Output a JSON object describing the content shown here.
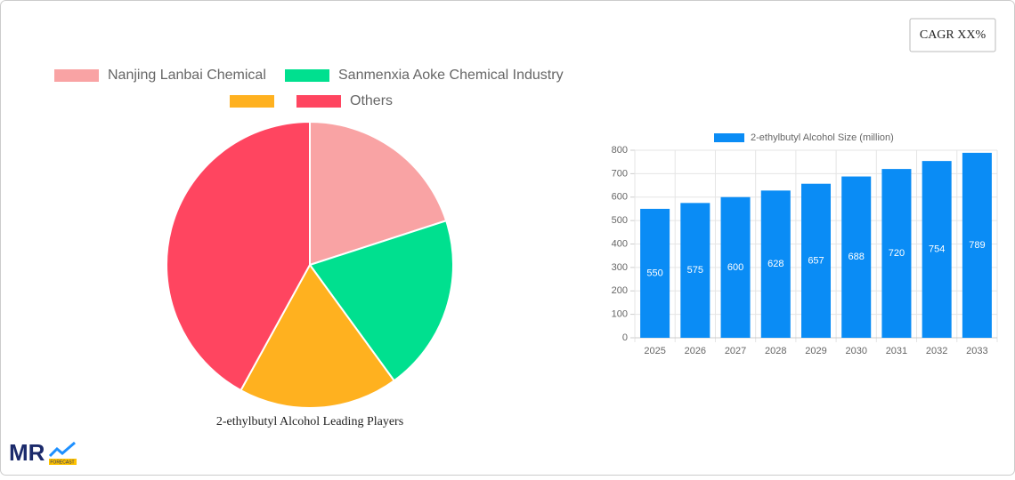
{
  "cagr_label": "CAGR XX%",
  "logo": {
    "text": "MR",
    "subtext": "FORECAST"
  },
  "chart_data": [
    {
      "type": "pie",
      "title": "2-ethylbutyl Alcohol Leading Players",
      "categories": [
        "Nanjing Lanbai Chemical",
        "Sanmenxia Aoke Chemical Industry",
        null,
        "Others"
      ],
      "values": [
        20,
        20,
        18,
        42
      ],
      "colors": [
        "#f9a3a4",
        "#00e08f",
        "#ffb11f",
        "#ff4560"
      ]
    },
    {
      "type": "bar",
      "categories": [
        "2025",
        "2026",
        "2027",
        "2028",
        "2029",
        "2030",
        "2031",
        "2032",
        "2033"
      ],
      "series": [
        {
          "name": "2-ethylbutyl Alcohol Size (million)",
          "color": "#0a8cf5",
          "values": [
            550,
            575,
            600,
            628,
            657,
            688,
            720,
            754,
            789
          ]
        }
      ],
      "ylim": [
        0,
        800
      ],
      "yticks": [
        0,
        100,
        200,
        300,
        400,
        500,
        600,
        700,
        800
      ],
      "grid": true
    }
  ]
}
